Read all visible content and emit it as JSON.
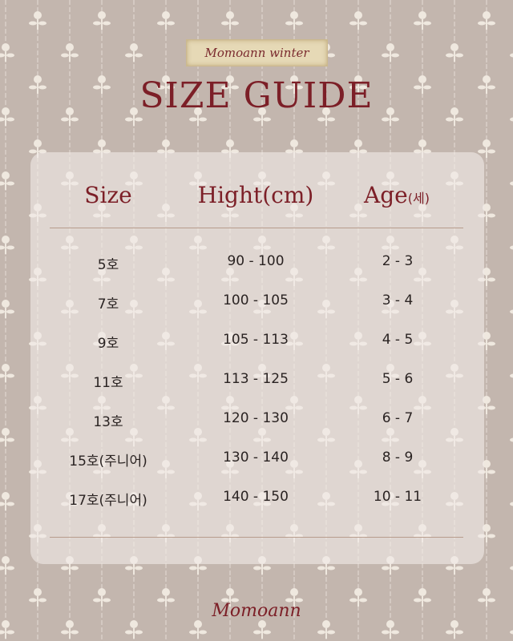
{
  "badge": "Momoann winter",
  "title": "SIZE GUIDE",
  "headers": {
    "size": "Size",
    "height": "Hight(cm)",
    "age": "Age",
    "age_unit": "(세)"
  },
  "rows": [
    {
      "size": "5호",
      "height": "90 - 100",
      "age": "2 - 3"
    },
    {
      "size": "7호",
      "height": "100 - 105",
      "age": "3 - 4"
    },
    {
      "size": "9호",
      "height": "105 - 113",
      "age": "4 - 5"
    },
    {
      "size": "11호",
      "height": "113 - 125",
      "age": "5 - 6"
    },
    {
      "size": "13호",
      "height": "120 - 130",
      "age": "6 - 7"
    },
    {
      "size": "15호(주니어)",
      "height": "130 - 140",
      "age": "8 - 9"
    },
    {
      "size": "17호(주니어)",
      "height": "140 - 150",
      "age": "10 - 11"
    }
  ],
  "footer": "Momoann",
  "colors": {
    "background": "#c3b6ae",
    "accent": "#7c1f27",
    "panel": "#ece5e1"
  }
}
